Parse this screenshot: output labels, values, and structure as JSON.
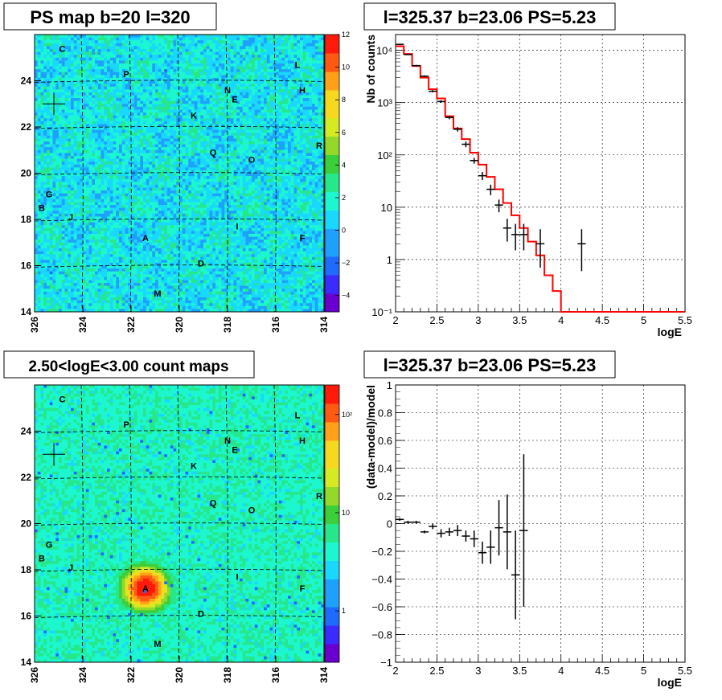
{
  "panels": {
    "ps_map": {
      "title": "PS map b=20 l=320"
    },
    "spectrum": {
      "title": "l=325.37 b=23.06 PS=5.23"
    },
    "count_map": {
      "title": "2.50<logE<3.00 count maps"
    },
    "residual": {
      "title": "l=325.37 b=23.06 PS=5.23"
    }
  },
  "colors": {
    "model_line": "#ff0000",
    "data_points": "#000000",
    "grid": "#000000",
    "palette": [
      "#6a00d0",
      "#3a2bff",
      "#1f6bff",
      "#1ea0ff",
      "#19d8ff",
      "#1cf7cf",
      "#26e88a",
      "#3ccf3c",
      "#93d82a",
      "#d6ea24",
      "#f6d81e",
      "#ffa21a",
      "#ff5a13",
      "#ff1a0c"
    ]
  },
  "chart_data": [
    {
      "id": "ps_map",
      "type": "heatmap",
      "title": "PS map b=20 l=320",
      "xlabel": "",
      "ylabel": "",
      "xlim": [
        326,
        314
      ],
      "ylim": [
        14,
        26
      ],
      "x_ticks": [
        "326",
        "324",
        "322",
        "320",
        "318",
        "316",
        "314"
      ],
      "y_ticks": [
        "14",
        "16",
        "18",
        "20",
        "22",
        "24"
      ],
      "colorbar": {
        "range": [
          -5,
          12
        ],
        "ticks": [
          "−4",
          "−2",
          "0",
          "2",
          "4",
          "6",
          "8",
          "10",
          "12"
        ]
      },
      "background_level": 1.0,
      "marker": {
        "type": "cross",
        "l": 325.2,
        "b": 23.0
      },
      "sources": [
        {
          "label": "C",
          "l": 324.85,
          "b": 25.4
        },
        {
          "label": "P",
          "l": 322.2,
          "b": 24.3
        },
        {
          "label": "L",
          "l": 315.1,
          "b": 24.7
        },
        {
          "label": "N",
          "l": 318.0,
          "b": 23.6
        },
        {
          "label": "H",
          "l": 314.9,
          "b": 23.6
        },
        {
          "label": "E",
          "l": 317.7,
          "b": 23.2
        },
        {
          "label": "K",
          "l": 319.4,
          "b": 22.5
        },
        {
          "label": "R",
          "l": 314.2,
          "b": 21.2
        },
        {
          "label": "Q",
          "l": 318.6,
          "b": 20.9
        },
        {
          "label": "O",
          "l": 317.0,
          "b": 20.6
        },
        {
          "label": "G",
          "l": 325.4,
          "b": 19.1
        },
        {
          "label": "B",
          "l": 325.7,
          "b": 18.5
        },
        {
          "label": "J",
          "l": 324.5,
          "b": 18.1
        },
        {
          "label": "I",
          "l": 317.6,
          "b": 17.7
        },
        {
          "label": "A",
          "l": 321.4,
          "b": 17.2
        },
        {
          "label": "F",
          "l": 314.9,
          "b": 17.2
        },
        {
          "label": "D",
          "l": 319.1,
          "b": 16.1
        },
        {
          "label": "M",
          "l": 320.9,
          "b": 14.8
        }
      ]
    },
    {
      "id": "spectrum",
      "type": "line",
      "title": "l=325.37 b=23.06 PS=5.23",
      "xlabel": "logE",
      "ylabel": "Nb of counts",
      "xlim": [
        2,
        5.5
      ],
      "ylim": [
        0.1,
        20000
      ],
      "yscale": "log",
      "x_ticks": [
        "2",
        "2.5",
        "3",
        "3.5",
        "4",
        "4.5",
        "5",
        "5.5"
      ],
      "y_ticks": [
        {
          "v": 0.1,
          "t": "10⁻¹"
        },
        {
          "v": 1,
          "t": "1"
        },
        {
          "v": 10,
          "t": "10"
        },
        {
          "v": 100,
          "t": "10²"
        },
        {
          "v": 1000,
          "t": "10³"
        },
        {
          "v": 10000,
          "t": "10⁴"
        }
      ],
      "model_step": {
        "edges": [
          2.0,
          2.1,
          2.2,
          2.3,
          2.4,
          2.5,
          2.6,
          2.7,
          2.8,
          2.9,
          3.0,
          3.1,
          3.2,
          3.3,
          3.4,
          3.5,
          3.6,
          3.7,
          3.8,
          3.9,
          4.0,
          4.1,
          4.2,
          4.3,
          4.4,
          4.5,
          4.6,
          4.7,
          4.8,
          4.9,
          5.0,
          5.1,
          5.2,
          5.3,
          5.4,
          5.5
        ],
        "values": [
          12000,
          8500,
          5000,
          3000,
          1800,
          1200,
          550,
          320,
          200,
          110,
          65,
          38,
          22,
          12,
          7,
          4,
          2.2,
          1.2,
          0.5,
          0.25,
          0.1,
          0.1,
          0.1,
          0.1,
          0.1,
          0.1,
          0.1,
          0.1,
          0.1,
          0.1,
          0.1,
          0.1,
          0.1,
          0.1,
          0.1
        ]
      },
      "data_points": [
        {
          "x": 2.05,
          "y": 13000,
          "lo": 12700,
          "hi": 13300
        },
        {
          "x": 2.15,
          "y": 8300,
          "lo": 8100,
          "hi": 8500
        },
        {
          "x": 2.25,
          "y": 5100,
          "lo": 4950,
          "hi": 5250
        },
        {
          "x": 2.35,
          "y": 3200,
          "lo": 3080,
          "hi": 3320
        },
        {
          "x": 2.45,
          "y": 1650,
          "lo": 1570,
          "hi": 1730
        },
        {
          "x": 2.55,
          "y": 1050,
          "lo": 990,
          "hi": 1110
        },
        {
          "x": 2.65,
          "y": 520,
          "lo": 480,
          "hi": 560
        },
        {
          "x": 2.75,
          "y": 310,
          "lo": 280,
          "hi": 340
        },
        {
          "x": 2.85,
          "y": 160,
          "lo": 140,
          "hi": 180
        },
        {
          "x": 2.95,
          "y": 78,
          "lo": 68,
          "hi": 88
        },
        {
          "x": 3.05,
          "y": 40,
          "lo": 33,
          "hi": 47
        },
        {
          "x": 3.15,
          "y": 22,
          "lo": 17,
          "hi": 27
        },
        {
          "x": 3.25,
          "y": 11,
          "lo": 8,
          "hi": 14
        },
        {
          "x": 3.35,
          "y": 4,
          "lo": 2.2,
          "hi": 6
        },
        {
          "x": 3.45,
          "y": 3,
          "lo": 1.5,
          "hi": 4.8
        },
        {
          "x": 3.55,
          "y": 3,
          "lo": 1.5,
          "hi": 4.8
        },
        {
          "x": 3.75,
          "y": 2,
          "lo": 0.7,
          "hi": 3.8
        },
        {
          "x": 4.25,
          "y": 2,
          "lo": 0.6,
          "hi": 3.8
        }
      ]
    },
    {
      "id": "count_map",
      "type": "heatmap",
      "title": "2.50<logE<3.00 count maps",
      "xlabel": "",
      "ylabel": "",
      "xlim": [
        326,
        314
      ],
      "ylim": [
        14,
        26
      ],
      "x_ticks": [
        "326",
        "324",
        "322",
        "320",
        "318",
        "316",
        "314"
      ],
      "y_ticks": [
        "14",
        "16",
        "18",
        "20",
        "22",
        "24"
      ],
      "colorbar": {
        "scale": "log",
        "range": [
          0.3,
          200
        ],
        "ticks": [
          {
            "v": 1,
            "t": "1"
          },
          {
            "v": 10,
            "t": "10"
          },
          {
            "v": 100,
            "t": "10²"
          }
        ]
      },
      "background_level": 4,
      "peak": {
        "label": "A",
        "l": 321.4,
        "b": 17.2,
        "max": 200
      },
      "marker": {
        "type": "cross",
        "l": 325.2,
        "b": 23.0
      }
    },
    {
      "id": "residual",
      "type": "scatter",
      "title": "l=325.37 b=23.06 PS=5.23",
      "xlabel": "logE",
      "ylabel": "(data-model)/model",
      "xlim": [
        2,
        5.5
      ],
      "ylim": [
        -1,
        1
      ],
      "x_ticks": [
        "2",
        "2.5",
        "3",
        "3.5",
        "4",
        "4.5",
        "5",
        "5.5"
      ],
      "y_ticks": [
        "−1",
        "−0.8",
        "−0.6",
        "−0.4",
        "−0.2",
        "0",
        "0.2",
        "0.4",
        "0.6",
        "0.8",
        "1"
      ],
      "points": [
        {
          "x": 2.05,
          "y": 0.03,
          "err": 0.01
        },
        {
          "x": 2.15,
          "y": 0.01,
          "err": 0.01
        },
        {
          "x": 2.25,
          "y": 0.01,
          "err": 0.01
        },
        {
          "x": 2.35,
          "y": -0.06,
          "err": 0.01
        },
        {
          "x": 2.45,
          "y": -0.02,
          "err": 0.02
        },
        {
          "x": 2.55,
          "y": -0.07,
          "err": 0.03
        },
        {
          "x": 2.65,
          "y": -0.06,
          "err": 0.03
        },
        {
          "x": 2.75,
          "y": -0.05,
          "err": 0.04
        },
        {
          "x": 2.85,
          "y": -0.09,
          "err": 0.04
        },
        {
          "x": 2.95,
          "y": -0.11,
          "err": 0.06
        },
        {
          "x": 3.05,
          "y": -0.21,
          "err": 0.08
        },
        {
          "x": 3.15,
          "y": -0.17,
          "err": 0.12
        },
        {
          "x": 3.25,
          "y": -0.03,
          "err": 0.2
        },
        {
          "x": 3.35,
          "y": -0.06,
          "err": 0.27
        },
        {
          "x": 3.45,
          "y": -0.37,
          "err": 0.32
        },
        {
          "x": 3.55,
          "y": -0.05,
          "err": 0.55
        }
      ]
    }
  ]
}
